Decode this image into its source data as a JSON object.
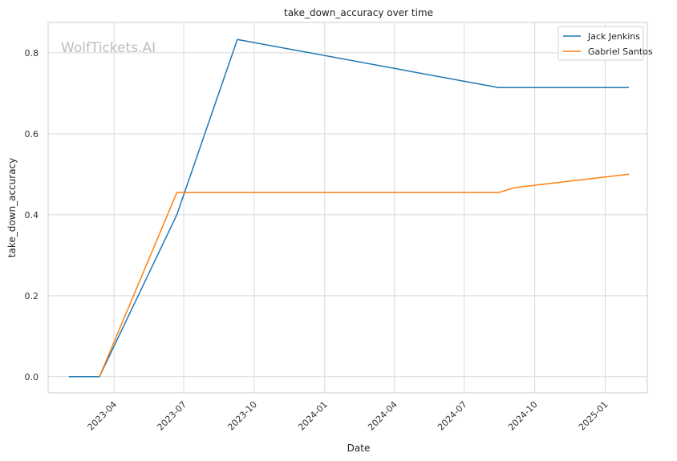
{
  "chart_data": {
    "type": "line",
    "title": "take_down_accuracy over time",
    "xlabel": "Date",
    "ylabel": "take_down_accuracy",
    "watermark": "WolfTickets.AI",
    "x_domain": [
      "2023-01-05",
      "2025-02-25"
    ],
    "ylim": [
      -0.04,
      0.875
    ],
    "x_ticks": [
      {
        "date": "2023-04-01",
        "label": "2023-04"
      },
      {
        "date": "2023-07-01",
        "label": "2023-07"
      },
      {
        "date": "2023-10-01",
        "label": "2023-10"
      },
      {
        "date": "2024-01-01",
        "label": "2024-01"
      },
      {
        "date": "2024-04-01",
        "label": "2024-04"
      },
      {
        "date": "2024-07-01",
        "label": "2024-07"
      },
      {
        "date": "2024-10-01",
        "label": "2024-10"
      },
      {
        "date": "2025-01-01",
        "label": "2025-01"
      }
    ],
    "y_ticks": [
      {
        "value": 0.0,
        "label": "0.0"
      },
      {
        "value": 0.2,
        "label": "0.2"
      },
      {
        "value": 0.4,
        "label": "0.4"
      },
      {
        "value": 0.6,
        "label": "0.6"
      },
      {
        "value": 0.8,
        "label": "0.8"
      }
    ],
    "grid": true,
    "legend_position": "top-right",
    "series": [
      {
        "name": "Jack Jenkins",
        "color": "#1f77b4",
        "points": [
          {
            "x": "2023-02-01",
            "y": 0.0
          },
          {
            "x": "2023-03-13",
            "y": 0.0
          },
          {
            "x": "2023-06-22",
            "y": 0.4
          },
          {
            "x": "2023-09-09",
            "y": 0.833
          },
          {
            "x": "2024-08-15",
            "y": 0.714
          },
          {
            "x": "2025-02-01",
            "y": 0.714
          }
        ]
      },
      {
        "name": "Gabriel Santos",
        "color": "#ff7f0e",
        "points": [
          {
            "x": "2023-03-13",
            "y": 0.0
          },
          {
            "x": "2023-06-22",
            "y": 0.455
          },
          {
            "x": "2024-08-15",
            "y": 0.455
          },
          {
            "x": "2024-09-05",
            "y": 0.467
          },
          {
            "x": "2025-02-01",
            "y": 0.5
          }
        ]
      }
    ]
  }
}
